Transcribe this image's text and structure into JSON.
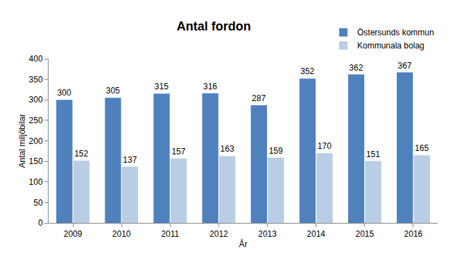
{
  "chart_data": {
    "type": "bar",
    "title": "Antal fordon",
    "x_label": "År",
    "y_label": "Antal miljöbilar",
    "categories": [
      "2009",
      "2010",
      "2011",
      "2012",
      "2013",
      "2014",
      "2015",
      "2016"
    ],
    "series": [
      {
        "name": "Östersunds kommun",
        "color": "#4f81bd",
        "values": [
          300,
          305,
          315,
          316,
          287,
          352,
          362,
          367
        ]
      },
      {
        "name": "Kommunala bolag",
        "color": "#b9cde5",
        "values": [
          152,
          137,
          157,
          163,
          159,
          170,
          151,
          165
        ]
      }
    ],
    "ylim": [
      0,
      400
    ],
    "yticks": [
      0,
      50,
      100,
      150,
      200,
      250,
      300,
      350,
      400
    ],
    "grid": false,
    "legend": "top right",
    "data_labels": true
  }
}
